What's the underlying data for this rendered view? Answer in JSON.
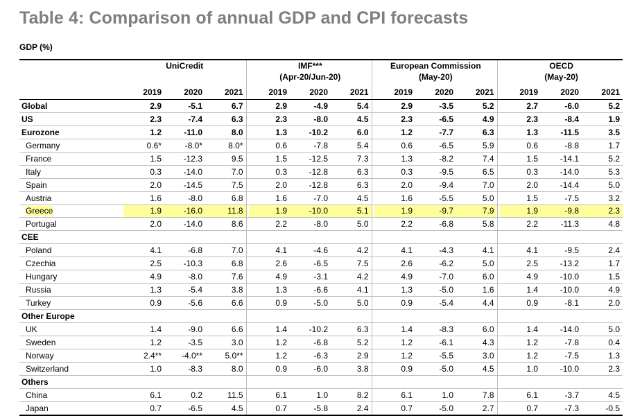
{
  "title": "Table 4: Comparison of annual GDP and CPI forecasts",
  "subtitle": "GDP (%)",
  "groups": [
    {
      "name": "UniCredit",
      "sub": ""
    },
    {
      "name": "IMF***",
      "sub": "(Apr-20/Jun-20)"
    },
    {
      "name": "European Commission",
      "sub": "(May-20)"
    },
    {
      "name": "OECD",
      "sub": "(May-20)"
    }
  ],
  "years": [
    "2019",
    "2020",
    "2021"
  ],
  "rows": [
    {
      "label": "Global",
      "type": "bold",
      "v": [
        "2.9",
        "-5.1",
        "6.7",
        "2.9",
        "-4.9",
        "5.4",
        "2.9",
        "-3.5",
        "5.2",
        "2.7",
        "-6.0",
        "5.2"
      ]
    },
    {
      "label": "US",
      "type": "bold",
      "v": [
        "2.3",
        "-7.4",
        "6.3",
        "2.3",
        "-8.0",
        "4.5",
        "2.3",
        "-6.5",
        "4.9",
        "2.3",
        "-8.4",
        "1.9"
      ]
    },
    {
      "label": "Eurozone",
      "type": "bold",
      "v": [
        "1.2",
        "-11.0",
        "8.0",
        "1.3",
        "-10.2",
        "6.0",
        "1.2",
        "-7.7",
        "6.3",
        "1.3",
        "-11.5",
        "3.5"
      ]
    },
    {
      "label": "Germany",
      "type": "sub",
      "v": [
        "0.6*",
        "-8.0*",
        "8.0*",
        "0.6",
        "-7.8",
        "5.4",
        "0.6",
        "-6.5",
        "5.9",
        "0.6",
        "-8.8",
        "1.7"
      ]
    },
    {
      "label": "France",
      "type": "sub",
      "v": [
        "1.5",
        "-12.3",
        "9.5",
        "1.5",
        "-12.5",
        "7.3",
        "1.3",
        "-8.2",
        "7.4",
        "1.5",
        "-14.1",
        "5.2"
      ]
    },
    {
      "label": "Italy",
      "type": "sub",
      "v": [
        "0.3",
        "-14.0",
        "7.0",
        "0.3",
        "-12.8",
        "6.3",
        "0.3",
        "-9.5",
        "6.5",
        "0.3",
        "-14.0",
        "5.3"
      ]
    },
    {
      "label": "Spain",
      "type": "sub",
      "v": [
        "2.0",
        "-14.5",
        "7.5",
        "2.0",
        "-12.8",
        "6.3",
        "2.0",
        "-9.4",
        "7.0",
        "2.0",
        "-14.4",
        "5.0"
      ]
    },
    {
      "label": "Austria",
      "type": "sub",
      "v": [
        "1.6",
        "-8.0",
        "6.8",
        "1.6",
        "-7.0",
        "4.5",
        "1.6",
        "-5.5",
        "5.0",
        "1.5",
        "-7.5",
        "3.2"
      ]
    },
    {
      "label": "Greece",
      "type": "sub-hl",
      "v": [
        "1.9",
        "-16.0",
        "11.8",
        "1.9",
        "-10.0",
        "5.1",
        "1.9",
        "-9.7",
        "7.9",
        "1.9",
        "-9.8",
        "2.3"
      ]
    },
    {
      "label": "Portugal",
      "type": "sub",
      "v": [
        "2.0",
        "-14.0",
        "8.6",
        "2.2",
        "-8.0",
        "5.0",
        "2.2",
        "-6.8",
        "5.8",
        "2.2",
        "-11.3",
        "4.8"
      ]
    },
    {
      "label": "CEE",
      "type": "cat",
      "v": []
    },
    {
      "label": "Poland",
      "type": "sub",
      "v": [
        "4.1",
        "-6.8",
        "7.0",
        "4.1",
        "-4.6",
        "4.2",
        "4.1",
        "-4.3",
        "4.1",
        "4.1",
        "-9.5",
        "2.4"
      ]
    },
    {
      "label": "Czechia",
      "type": "sub",
      "v": [
        "2.5",
        "-10.3",
        "6.8",
        "2.6",
        "-6.5",
        "7.5",
        "2.6",
        "-6.2",
        "5.0",
        "2.5",
        "-13.2",
        "1.7"
      ]
    },
    {
      "label": "Hungary",
      "type": "sub",
      "v": [
        "4.9",
        "-8.0",
        "7.6",
        "4.9",
        "-3.1",
        "4.2",
        "4.9",
        "-7.0",
        "6.0",
        "4.9",
        "-10.0",
        "1.5"
      ]
    },
    {
      "label": "Russia",
      "type": "sub",
      "v": [
        "1.3",
        "-5.4",
        "3.8",
        "1.3",
        "-6.6",
        "4.1",
        "1.3",
        "-5.0",
        "1.6",
        "1.4",
        "-10.0",
        "4.9"
      ]
    },
    {
      "label": "Turkey",
      "type": "sub",
      "v": [
        "0.9",
        "-5.6",
        "6.6",
        "0.9",
        "-5.0",
        "5.0",
        "0.9",
        "-5.4",
        "4.4",
        "0.9",
        "-8.1",
        "2.0"
      ]
    },
    {
      "label": "Other Europe",
      "type": "cat",
      "v": []
    },
    {
      "label": "UK",
      "type": "sub",
      "v": [
        "1.4",
        "-9.0",
        "6.6",
        "1.4",
        "-10.2",
        "6.3",
        "1.4",
        "-8.3",
        "6.0",
        "1.4",
        "-14.0",
        "5.0"
      ]
    },
    {
      "label": "Sweden",
      "type": "sub",
      "v": [
        "1.2",
        "-3.5",
        "3.0",
        "1.2",
        "-6.8",
        "5.2",
        "1.2",
        "-6.1",
        "4.3",
        "1.2",
        "-7.8",
        "0.4"
      ]
    },
    {
      "label": "Norway",
      "type": "sub",
      "v": [
        "2.4**",
        "-4.0**",
        "5.0**",
        "1.2",
        "-6.3",
        "2.9",
        "1.2",
        "-5.5",
        "3.0",
        "1.2",
        "-7.5",
        "1.3"
      ]
    },
    {
      "label": "Switzerland",
      "type": "sub",
      "v": [
        "1.0",
        "-8.3",
        "8.0",
        "0.9",
        "-6.0",
        "3.8",
        "0.9",
        "-5.0",
        "4.5",
        "1.0",
        "-10.0",
        "2.3"
      ]
    },
    {
      "label": "Others",
      "type": "cat",
      "v": []
    },
    {
      "label": "China",
      "type": "sub",
      "v": [
        "6.1",
        "0.2",
        "11.5",
        "6.1",
        "1.0",
        "8.2",
        "6.1",
        "1.0",
        "7.8",
        "6.1",
        "-3.7",
        "4.5"
      ]
    },
    {
      "label": "Japan",
      "type": "sub",
      "v": [
        "0.7",
        "-6.5",
        "4.5",
        "0.7",
        "-5.8",
        "2.4",
        "0.7",
        "-5.0",
        "2.7",
        "0.7",
        "-7.3",
        "-0.5"
      ]
    }
  ],
  "colors": {
    "title": "#7f7f7f",
    "highlight": "#ffff99",
    "grid": "#bdbdbd"
  }
}
